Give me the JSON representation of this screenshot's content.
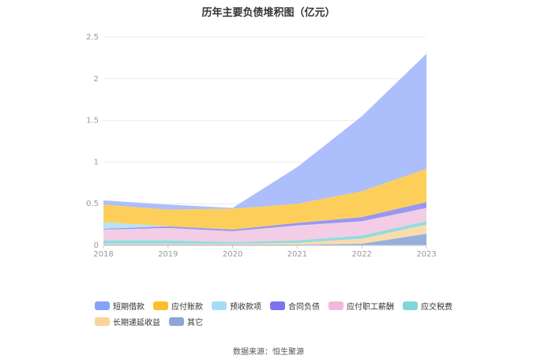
{
  "chart_data": {
    "type": "area",
    "stacked": true,
    "title": "历年主要负债堆积图（亿元）",
    "x": [
      "2018",
      "2019",
      "2020",
      "2021",
      "2022",
      "2023"
    ],
    "ylim": [
      0,
      2.5
    ],
    "yticks": [
      "0",
      "0.5",
      "1",
      "1.5",
      "2",
      "2.5"
    ],
    "grid": true,
    "legend_position": "bottom",
    "series": [
      {
        "name": "其它",
        "color": "#8fa8d8",
        "values": [
          0.01,
          0.01,
          0.01,
          0.01,
          0.02,
          0.14
        ]
      },
      {
        "name": "长期递延收益",
        "color": "#fbd9a6",
        "values": [
          0.01,
          0.01,
          0.01,
          0.02,
          0.06,
          0.11
        ]
      },
      {
        "name": "应交税费",
        "color": "#89d9dc",
        "values": [
          0.04,
          0.04,
          0.02,
          0.03,
          0.04,
          0.04
        ]
      },
      {
        "name": "应付职工薪酬",
        "color": "#f1c9e3",
        "values": [
          0.13,
          0.15,
          0.13,
          0.18,
          0.17,
          0.16
        ]
      },
      {
        "name": "合同负债",
        "color": "#8f8ef3",
        "values": [
          0.01,
          0.02,
          0.02,
          0.03,
          0.05,
          0.07
        ]
      },
      {
        "name": "预收款项",
        "color": "#b2e0f4",
        "values": [
          0.08,
          0.0,
          0.0,
          0.0,
          0.0,
          0.0
        ]
      },
      {
        "name": "应付账款",
        "color": "#fdcb4c",
        "values": [
          0.21,
          0.2,
          0.25,
          0.23,
          0.31,
          0.4
        ]
      },
      {
        "name": "短期借款",
        "color": "#a5b8fb",
        "values": [
          0.05,
          0.06,
          0.01,
          0.44,
          0.9,
          1.38
        ]
      }
    ]
  },
  "legend": {
    "items": [
      {
        "label": "短期借款",
        "color": "#86a4f7"
      },
      {
        "label": "应付账款",
        "color": "#fbbf2c"
      },
      {
        "label": "预收款项",
        "color": "#a6dcf5"
      },
      {
        "label": "合同负债",
        "color": "#7a74ee"
      },
      {
        "label": "应付职工薪酬",
        "color": "#f0b9dc"
      },
      {
        "label": "应交税费",
        "color": "#7fd6d9"
      },
      {
        "label": "长期递延收益",
        "color": "#fbd39a"
      },
      {
        "label": "其它",
        "color": "#8ea6d8"
      }
    ]
  },
  "footer": {
    "source": "数据来源：恒生聚源"
  }
}
